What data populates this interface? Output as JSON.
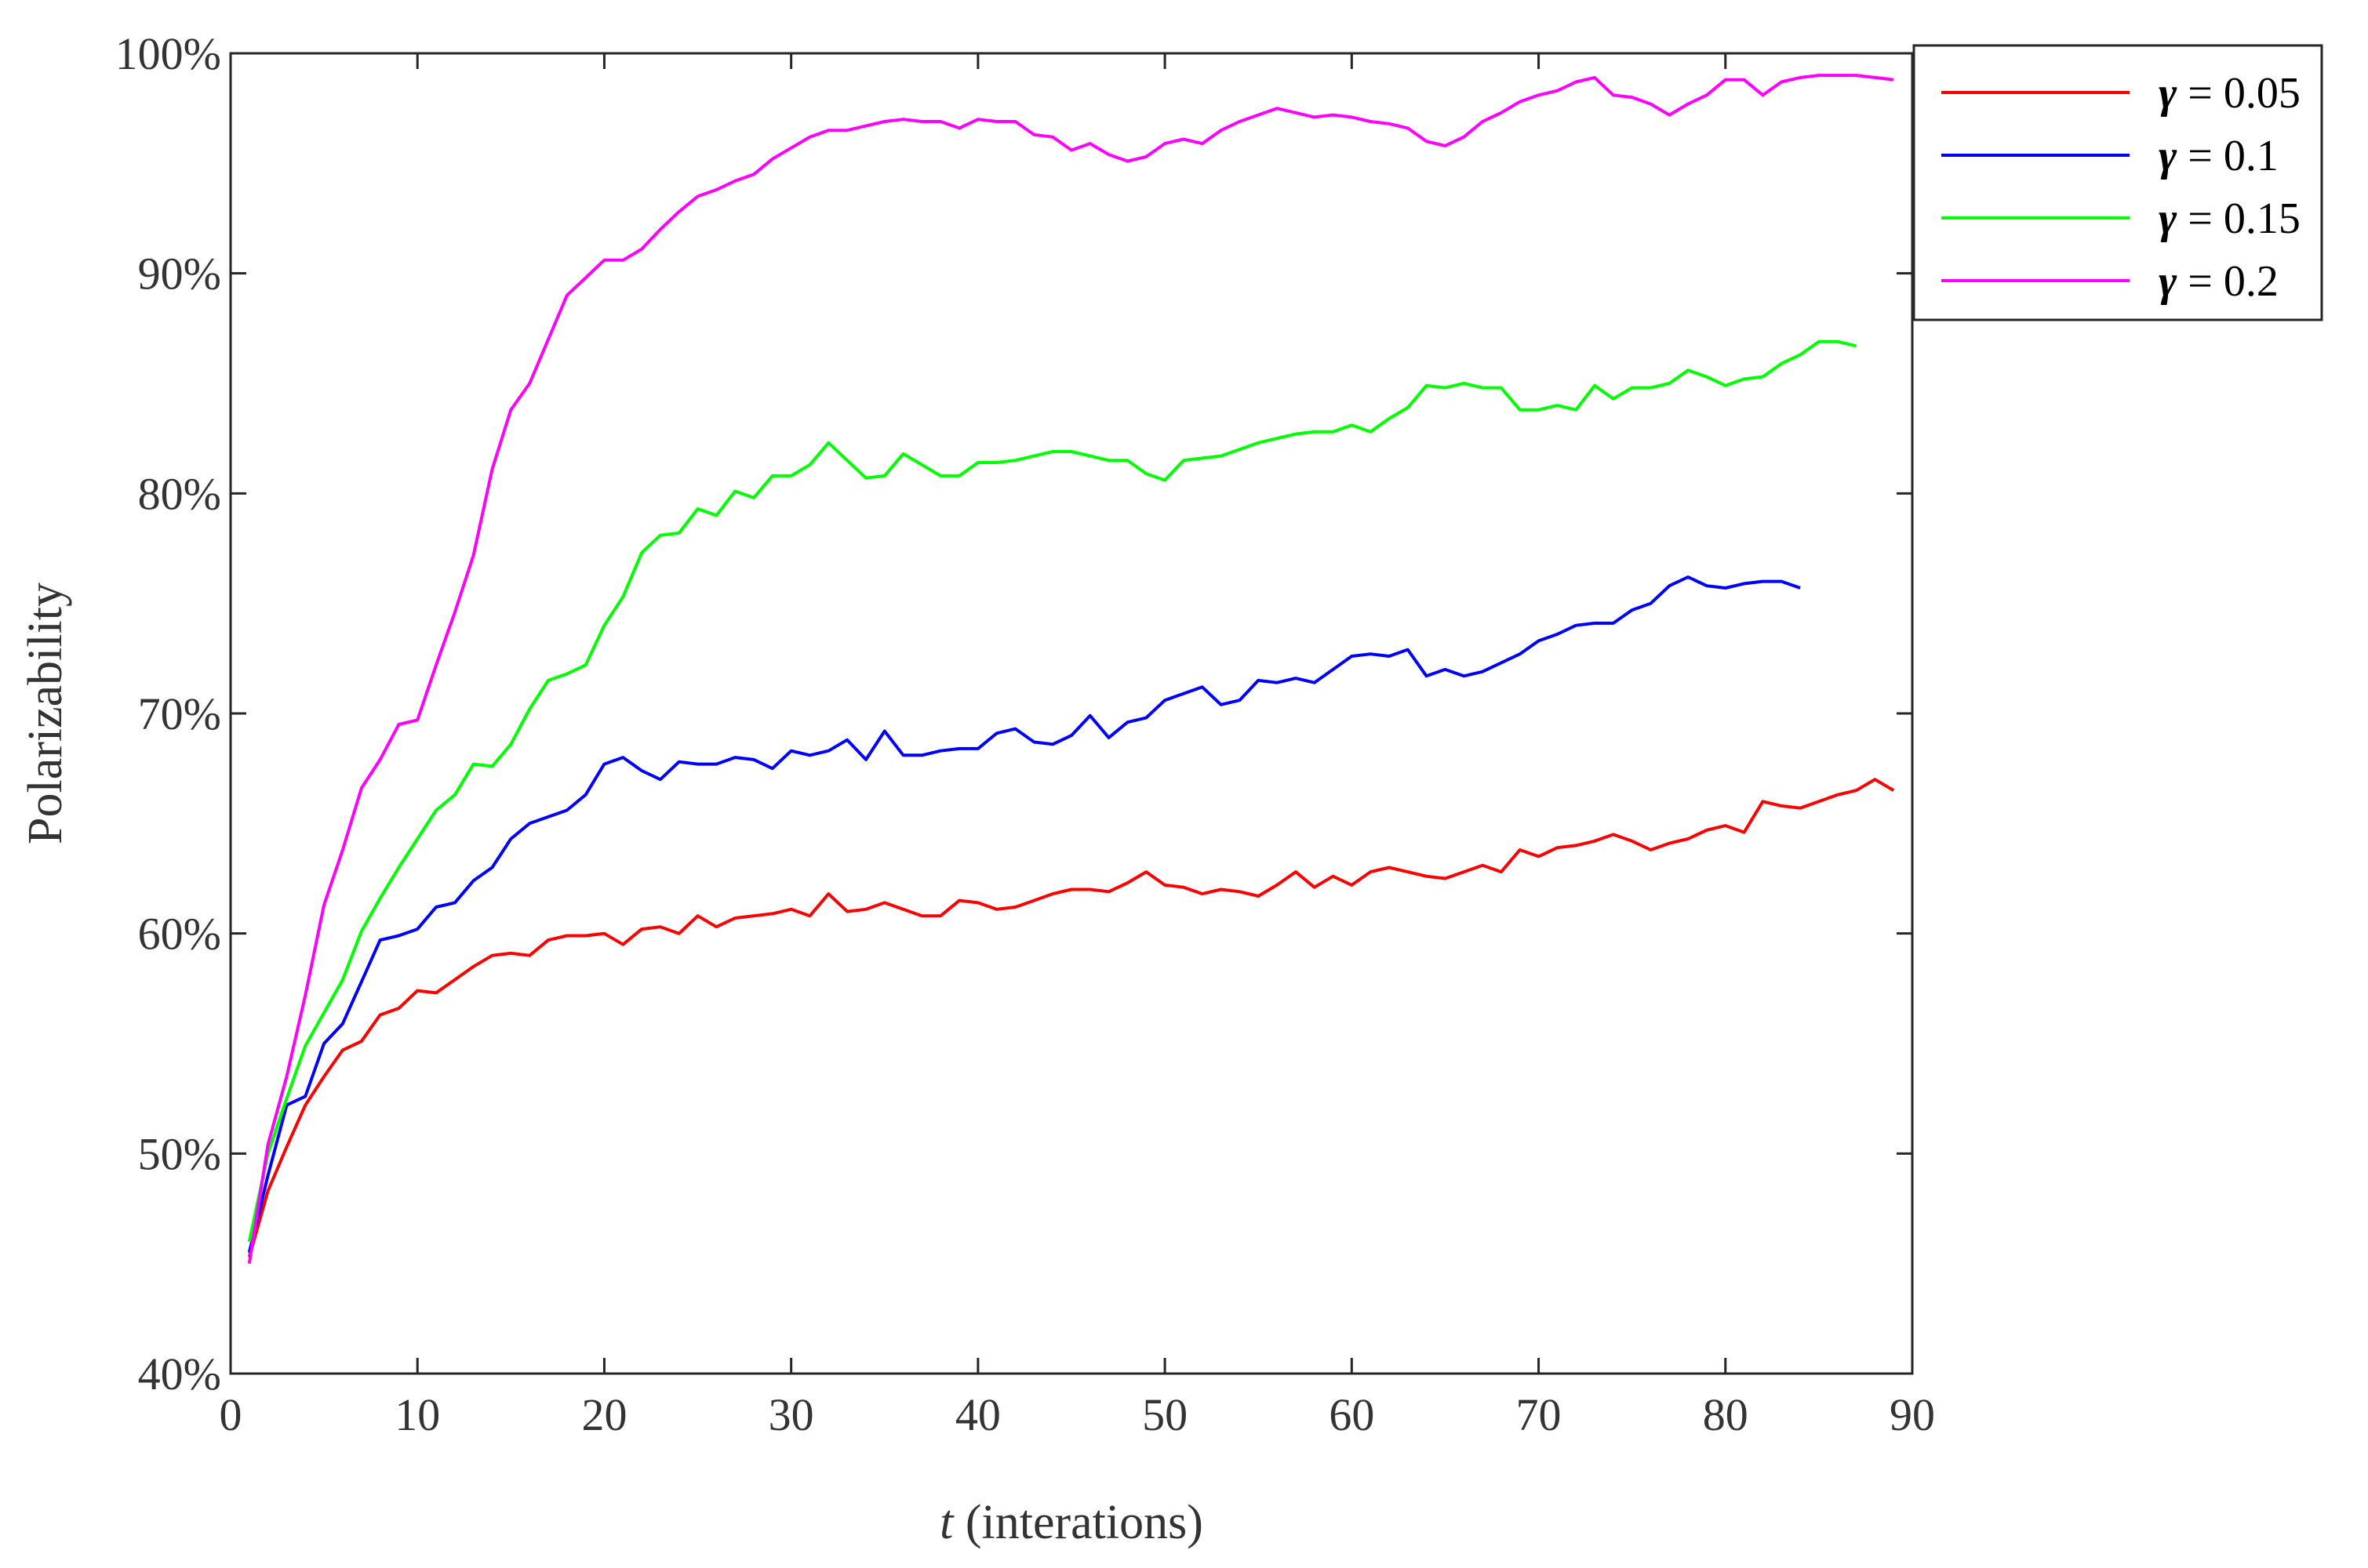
{
  "chart_data": {
    "type": "line",
    "xlabel_italic": "t",
    "xlabel_rest": " (interations)",
    "ylabel": "Polarizability",
    "xlim": [
      0,
      90
    ],
    "ylim": [
      40,
      100
    ],
    "x_ticks": [
      "0",
      "10",
      "20",
      "30",
      "40",
      "50",
      "60",
      "70",
      "80",
      "90"
    ],
    "y_ticks": [
      "40%",
      "50%",
      "60%",
      "70%",
      "80%",
      "90%",
      "100%"
    ],
    "legend_position": "top-right (outside)",
    "series": [
      {
        "name": "γ = 0.05",
        "symbol": "γ",
        "label_value": " = 0.05",
        "color": "#ff0000",
        "x": [
          1,
          2,
          3,
          4,
          5,
          6,
          7,
          8,
          9,
          10,
          11,
          12,
          13,
          14,
          15,
          16,
          17,
          18,
          19,
          20,
          21,
          22,
          23,
          24,
          25,
          26,
          27,
          28,
          29,
          30,
          31,
          32,
          33,
          34,
          35,
          36,
          37,
          38,
          39,
          40,
          41,
          42,
          43,
          44,
          45,
          46,
          47,
          48,
          49,
          50,
          51,
          52,
          53,
          54,
          55,
          56,
          57,
          58,
          59,
          60,
          61,
          62,
          63,
          64,
          65,
          66,
          67,
          68,
          69,
          70,
          71,
          72,
          73,
          74,
          75,
          76,
          77,
          78,
          79,
          80,
          81,
          82,
          83,
          84,
          85,
          86,
          87,
          88,
          89
        ],
        "values": [
          45.3,
          48.3,
          50.3,
          52.2,
          53.5,
          54.7,
          55.1,
          56.3,
          56.6,
          57.4,
          57.3,
          57.9,
          58.5,
          59.0,
          59.1,
          59.0,
          59.7,
          59.9,
          59.9,
          60.0,
          59.5,
          60.2,
          60.3,
          60.0,
          60.8,
          60.3,
          60.7,
          60.8,
          60.9,
          61.1,
          60.8,
          61.8,
          61.0,
          61.1,
          61.4,
          61.1,
          60.8,
          60.8,
          61.5,
          61.4,
          61.1,
          61.2,
          61.5,
          61.8,
          62.0,
          62.0,
          61.9,
          62.3,
          62.8,
          62.2,
          62.1,
          61.8,
          62.0,
          61.9,
          61.7,
          62.2,
          62.8,
          62.1,
          62.6,
          62.2,
          62.8,
          63.0,
          62.8,
          62.6,
          62.5,
          62.8,
          63.1,
          62.8,
          63.8,
          63.5,
          63.9,
          64.0,
          64.2,
          64.5,
          64.2,
          63.8,
          64.1,
          64.3,
          64.7,
          64.9,
          64.6,
          66.0,
          65.8,
          65.7,
          66.0,
          66.3,
          66.5,
          67.0,
          66.5
        ]
      },
      {
        "name": "γ = 0.1",
        "symbol": "γ",
        "label_value": " = 0.1",
        "color": "#0000ff",
        "x": [
          1,
          2,
          3,
          4,
          5,
          6,
          7,
          8,
          9,
          10,
          11,
          12,
          13,
          14,
          15,
          16,
          17,
          18,
          19,
          20,
          21,
          22,
          23,
          24,
          25,
          26,
          27,
          28,
          29,
          30,
          31,
          32,
          33,
          34,
          35,
          36,
          37,
          38,
          39,
          40,
          41,
          42,
          43,
          44,
          45,
          46,
          47,
          48,
          49,
          50,
          51,
          52,
          53,
          54,
          55,
          56,
          57,
          58,
          59,
          60,
          61,
          62,
          63,
          64,
          65,
          66,
          67,
          68,
          69,
          70,
          71,
          72,
          73,
          74,
          75,
          76,
          77,
          78,
          79,
          80,
          81,
          82,
          83,
          84
        ],
        "values": [
          45.5,
          49.0,
          52.2,
          52.6,
          55.0,
          55.9,
          57.8,
          59.7,
          59.9,
          60.2,
          61.2,
          61.4,
          62.4,
          63.0,
          64.3,
          65.0,
          65.3,
          65.6,
          66.3,
          67.7,
          68.0,
          67.4,
          67.0,
          67.8,
          67.7,
          67.7,
          68.0,
          67.9,
          67.5,
          68.3,
          68.1,
          68.3,
          68.8,
          67.9,
          69.2,
          68.1,
          68.1,
          68.3,
          68.4,
          68.4,
          69.1,
          69.3,
          68.7,
          68.6,
          69.0,
          69.9,
          68.9,
          69.6,
          69.8,
          70.6,
          70.9,
          71.2,
          70.4,
          70.6,
          71.5,
          71.4,
          71.6,
          71.4,
          72.0,
          72.6,
          72.7,
          72.6,
          72.9,
          71.7,
          72.0,
          71.7,
          71.9,
          72.3,
          72.7,
          73.3,
          73.6,
          74.0,
          74.1,
          74.1,
          74.7,
          75.0,
          75.8,
          76.2,
          75.8,
          75.7,
          75.9,
          76.0,
          76.0,
          75.7
        ]
      },
      {
        "name": "γ = 0.15",
        "symbol": "γ",
        "label_value": " = 0.15",
        "color": "#00ff00",
        "x": [
          1,
          2,
          3,
          4,
          5,
          6,
          7,
          8,
          9,
          10,
          11,
          12,
          13,
          14,
          15,
          16,
          17,
          18,
          19,
          20,
          21,
          22,
          23,
          24,
          25,
          26,
          27,
          28,
          29,
          30,
          31,
          32,
          33,
          34,
          35,
          36,
          37,
          38,
          39,
          40,
          41,
          42,
          43,
          44,
          45,
          46,
          47,
          48,
          49,
          50,
          51,
          52,
          53,
          54,
          55,
          56,
          57,
          58,
          59,
          60,
          61,
          62,
          63,
          64,
          65,
          66,
          67,
          68,
          69,
          70,
          71,
          72,
          73,
          74,
          75,
          76,
          77,
          78,
          79,
          80,
          81,
          82,
          83,
          84,
          85,
          86,
          87
        ],
        "values": [
          46.0,
          50.0,
          52.5,
          54.9,
          56.4,
          57.9,
          60.1,
          61.6,
          63.0,
          64.3,
          65.6,
          66.3,
          67.7,
          67.6,
          68.6,
          70.2,
          71.5,
          71.8,
          72.2,
          74.0,
          75.3,
          77.3,
          78.1,
          78.2,
          79.3,
          79.0,
          80.1,
          79.8,
          80.8,
          80.8,
          81.3,
          82.3,
          81.5,
          80.7,
          80.8,
          81.8,
          81.3,
          80.8,
          80.8,
          81.4,
          81.4,
          81.5,
          81.7,
          81.9,
          81.9,
          81.7,
          81.5,
          81.5,
          80.9,
          80.6,
          81.5,
          81.6,
          81.7,
          82.0,
          82.3,
          82.5,
          82.7,
          82.8,
          82.8,
          83.1,
          82.8,
          83.4,
          83.9,
          84.9,
          84.8,
          85.0,
          84.8,
          84.8,
          83.8,
          83.8,
          84.0,
          83.8,
          84.9,
          84.3,
          84.8,
          84.8,
          85.0,
          85.6,
          85.3,
          84.9,
          85.2,
          85.3,
          85.9,
          86.3,
          86.9,
          86.9,
          86.7
        ]
      },
      {
        "name": "γ = 0.2",
        "symbol": "γ",
        "label_value": " = 0.2",
        "color": "#ff00ff",
        "x": [
          1,
          2,
          3,
          4,
          5,
          6,
          7,
          8,
          9,
          10,
          11,
          12,
          13,
          14,
          15,
          16,
          17,
          18,
          19,
          20,
          21,
          22,
          23,
          24,
          25,
          26,
          27,
          28,
          29,
          30,
          31,
          32,
          33,
          34,
          35,
          36,
          37,
          38,
          39,
          40,
          41,
          42,
          43,
          44,
          45,
          46,
          47,
          48,
          49,
          50,
          51,
          52,
          53,
          54,
          55,
          56,
          57,
          58,
          59,
          60,
          61,
          62,
          63,
          64,
          65,
          66,
          67,
          68,
          69,
          70,
          71,
          72,
          73,
          74,
          75,
          76,
          77,
          78,
          79,
          80,
          81,
          82,
          83,
          84,
          85,
          86,
          87,
          88,
          89
        ],
        "values": [
          45.0,
          50.4,
          53.5,
          57.2,
          61.3,
          63.8,
          66.6,
          67.9,
          69.5,
          69.7,
          72.2,
          74.6,
          77.2,
          81.1,
          83.8,
          85.0,
          87.0,
          89.0,
          89.8,
          90.6,
          90.6,
          91.1,
          92.0,
          92.8,
          93.5,
          93.8,
          94.2,
          94.5,
          95.2,
          95.7,
          96.2,
          96.5,
          96.5,
          96.7,
          96.9,
          97.0,
          96.9,
          96.9,
          96.6,
          97.0,
          96.9,
          96.9,
          96.3,
          96.2,
          95.6,
          95.9,
          95.4,
          95.1,
          95.3,
          95.9,
          96.1,
          95.9,
          96.5,
          96.9,
          97.2,
          97.5,
          97.3,
          97.1,
          97.2,
          97.1,
          96.9,
          96.8,
          96.6,
          96.0,
          95.8,
          96.2,
          96.9,
          97.3,
          97.8,
          98.1,
          98.3,
          98.7,
          98.9,
          98.1,
          98.0,
          97.7,
          97.2,
          97.7,
          98.1,
          98.8,
          98.8,
          98.1,
          98.7,
          98.9,
          99.0,
          99.0,
          99.0,
          98.9,
          98.8
        ]
      }
    ]
  }
}
